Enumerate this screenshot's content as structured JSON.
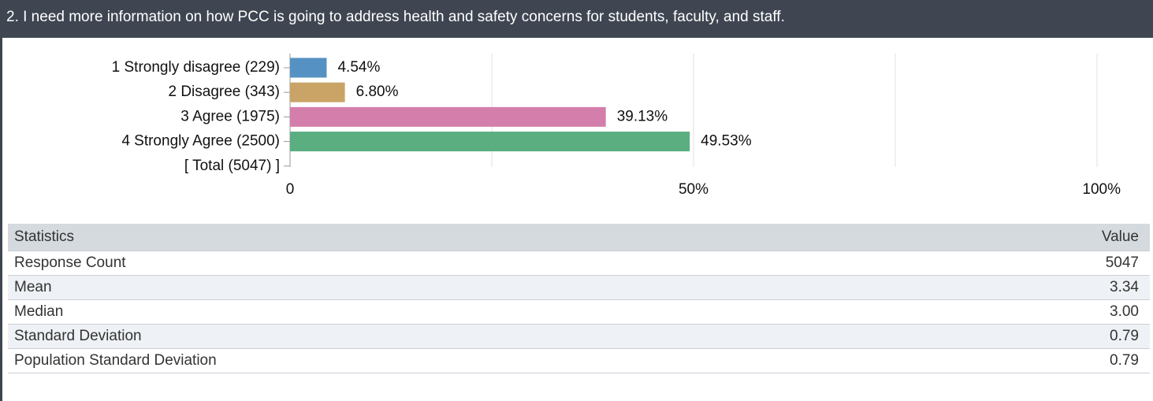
{
  "header": {
    "title": "2. I need more information on how PCC is going to address health and safety concerns for students, faculty, and staff."
  },
  "chart_data": {
    "type": "hbar",
    "categories": [
      "1 Strongly disagree (229)",
      "2 Disagree (343)",
      "3 Agree (1975)",
      "4 Strongly Agree (2500)",
      "[ Total (5047) ]"
    ],
    "values": [
      4.54,
      6.8,
      39.13,
      49.53,
      null
    ],
    "value_labels": [
      "4.54%",
      "6.80%",
      "39.13%",
      "49.53%",
      null
    ],
    "colors": [
      "#5592c3",
      "#c9a466",
      "#d47fab",
      "#5aae80",
      null
    ],
    "xlim": [
      0,
      100
    ],
    "xticks": [
      0,
      {
        "value": 50,
        "label": "50%"
      },
      {
        "value": 100,
        "label": "100%"
      }
    ],
    "minor_xticks": [
      25,
      75
    ],
    "grid": true
  },
  "table": {
    "header": [
      "Statistics",
      "Value"
    ],
    "rows": [
      [
        "Response Count",
        "5047"
      ],
      [
        "Mean",
        "3.34"
      ],
      [
        "Median",
        "3.00"
      ],
      [
        "Standard Deviation",
        "0.79"
      ],
      [
        "Population Standard Deviation",
        "0.79"
      ]
    ]
  }
}
